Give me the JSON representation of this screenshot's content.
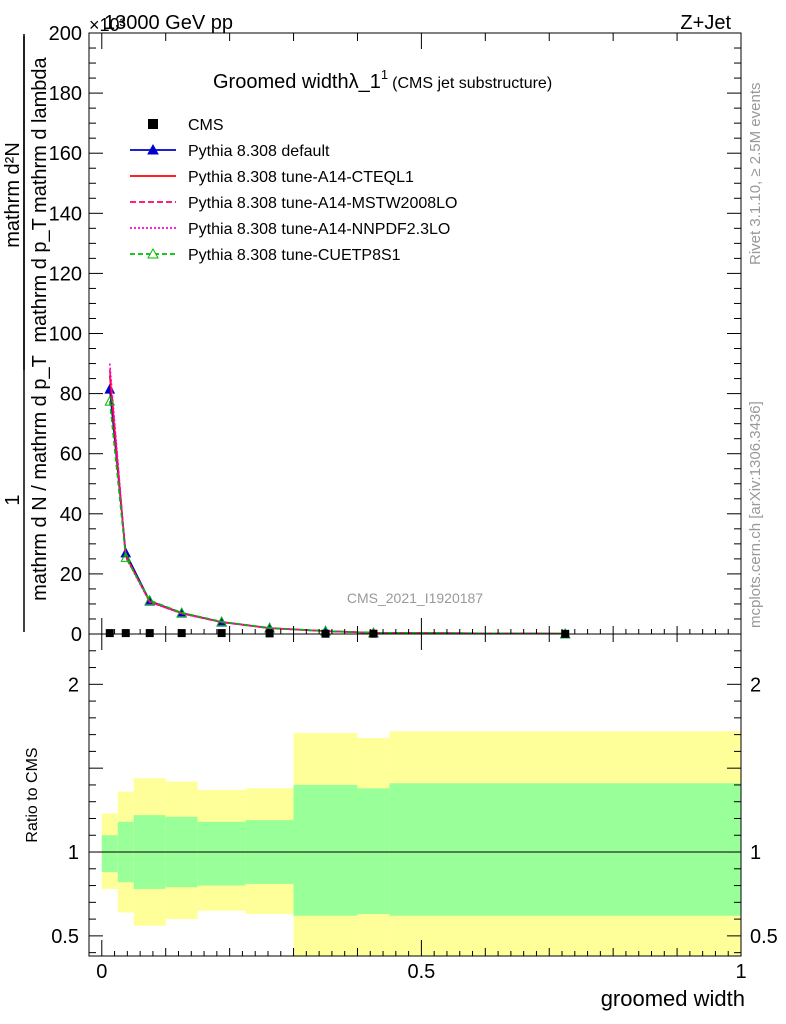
{
  "header": {
    "left": "13000 GeV pp",
    "right": "Z+Jet",
    "exponent": "×10³",
    "title_main": "Groomed widthλ_1",
    "title_sup": "1",
    "title_sub": "(CMS jet substructure)",
    "watermark": "CMS_2021_I1920187",
    "side_rivet": "Rivet 3.1.10, ≥ 2.5M events",
    "side_mcplots": "mcplots.cern.ch [arXiv:1306.3436]"
  },
  "axes": {
    "ylabel_top_frac_num": "1",
    "ylabel_top_frac_den": "mathrm d N / mathrm d p_T",
    "ylabel_num": "mathrm d²N",
    "ylabel_den": "mathrm d p_T mathrm d lambda",
    "xlabel": "groomed width",
    "ratio_ylabel": "Ratio to CMS"
  },
  "colors": {
    "cms": "#000000",
    "default": "#0000cc",
    "cteql1": "#ff0000",
    "mstw": "#ff0066",
    "nnpdf": "#ff00cc",
    "cuetp8s1": "#00bb00",
    "band_inner": "#99ff99",
    "band_outer": "#ffff99"
  },
  "legend": [
    {
      "key": "cms",
      "label": "CMS",
      "style": "square"
    },
    {
      "key": "default",
      "label": "Pythia 8.308 default",
      "style": "line-triangle"
    },
    {
      "key": "cteql1",
      "label": "Pythia 8.308 tune-A14-CTEQL1",
      "style": "solid"
    },
    {
      "key": "mstw",
      "label": "Pythia 8.308 tune-A14-MSTW2008LO",
      "style": "dashed"
    },
    {
      "key": "nnpdf",
      "label": "Pythia 8.308 tune-A14-NNPDF2.3LO",
      "style": "dotted"
    },
    {
      "key": "cuetp8s1",
      "label": "Pythia 8.308 tune-CUETP8S1",
      "style": "dashed-open-triangle"
    }
  ],
  "chart_data": {
    "type": "line",
    "xlim": [
      -0.02,
      1.0
    ],
    "ylim": [
      0,
      200000
    ],
    "ratio_ylim": [
      0.38,
      2.3
    ],
    "xticks": [
      0,
      0.5,
      1
    ],
    "xtick_labels": [
      "0",
      "0.5",
      "1"
    ],
    "yticks": [
      0,
      20000,
      40000,
      60000,
      80000,
      100000,
      120000,
      140000,
      160000,
      180000,
      200000
    ],
    "ytick_labels": [
      "0",
      "20",
      "40",
      "60",
      "80",
      "100",
      "120",
      "140",
      "160",
      "180",
      "200"
    ],
    "ratio_yticks": [
      0.5,
      1,
      2
    ],
    "ratio_ytick_labels": [
      "0.5",
      "1",
      "2"
    ],
    "bin_edges": [
      0,
      0.025,
      0.05,
      0.1,
      0.15,
      0.225,
      0.3,
      0.4,
      0.45,
      1.0
    ],
    "bin_centers": [
      0.0125,
      0.0375,
      0.075,
      0.125,
      0.1875,
      0.2625,
      0.35,
      0.425,
      0.725
    ],
    "cms_values": [
      300,
      300,
      300,
      300,
      300,
      200,
      100,
      100,
      50
    ],
    "series": [
      {
        "name": "Pythia 8.308 default",
        "key": "default",
        "values": [
          81500,
          27000,
          11000,
          7000,
          4000,
          2000,
          1000,
          400,
          100
        ]
      },
      {
        "name": "Pythia 8.308 tune-A14-CTEQL1",
        "key": "cteql1",
        "values": [
          86000,
          26000,
          10800,
          6900,
          3950,
          1950,
          950,
          390,
          100
        ]
      },
      {
        "name": "Pythia 8.308 tune-A14-MSTW2008LO",
        "key": "mstw",
        "values": [
          88000,
          25800,
          10700,
          6850,
          3900,
          1950,
          950,
          390,
          100
        ]
      },
      {
        "name": "Pythia 8.308 tune-A14-NNPDF2.3LO",
        "key": "nnpdf",
        "values": [
          90000,
          25500,
          10600,
          6800,
          3900,
          1900,
          950,
          380,
          100
        ]
      },
      {
        "name": "Pythia 8.308 tune-CUETP8S1",
        "key": "cuetp8s1",
        "values": [
          77500,
          25500,
          11200,
          7100,
          4100,
          2050,
          1000,
          410,
          100
        ]
      }
    ],
    "ratio_band_inner": [
      [
        0.88,
        1.1
      ],
      [
        0.82,
        1.18
      ],
      [
        0.78,
        1.22
      ],
      [
        0.79,
        1.21
      ],
      [
        0.8,
        1.18
      ],
      [
        0.81,
        1.19
      ],
      [
        0.62,
        1.4
      ],
      [
        0.63,
        1.38
      ],
      [
        0.62,
        1.41
      ]
    ],
    "ratio_band_outer": [
      [
        0.78,
        1.23
      ],
      [
        0.64,
        1.36
      ],
      [
        0.56,
        1.44
      ],
      [
        0.6,
        1.42
      ],
      [
        0.65,
        1.37
      ],
      [
        0.63,
        1.38
      ],
      [
        0.3,
        1.71
      ],
      [
        0.3,
        1.68
      ],
      [
        0.3,
        1.72
      ]
    ]
  }
}
